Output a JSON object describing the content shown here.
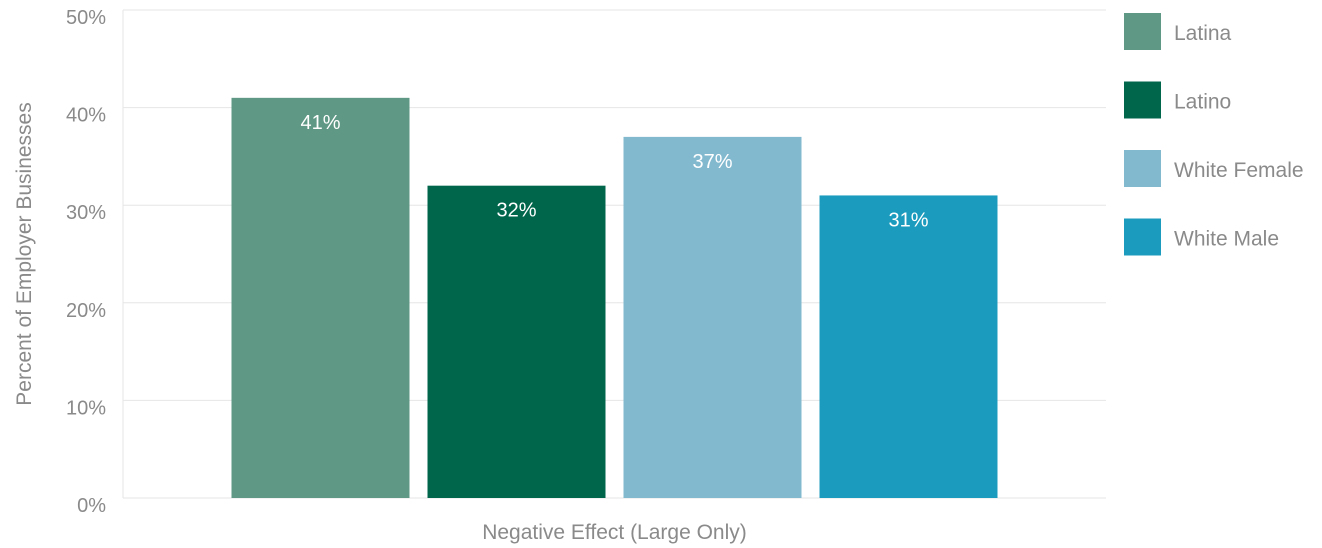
{
  "chart_data": {
    "type": "bar",
    "title": "",
    "xlabel": "Negative Effect (Large Only)",
    "ylabel": "Percent of Employer Businesses",
    "categories": [
      "Negative Effect (Large Only)"
    ],
    "series": [
      {
        "name": "Latina",
        "values": [
          41
        ],
        "color": "#5f9884",
        "label": "41%"
      },
      {
        "name": "Latino",
        "values": [
          32
        ],
        "color": "#00664b",
        "label": "32%"
      },
      {
        "name": "White Female",
        "values": [
          37
        ],
        "color": "#82b9cf",
        "label": "37%"
      },
      {
        "name": "White Male",
        "values": [
          31
        ],
        "color": "#1b9bbd",
        "label": "31%"
      }
    ],
    "ylim": [
      0,
      50
    ],
    "yticks": [
      "0%",
      "10%",
      "20%",
      "30%",
      "40%",
      "50%"
    ],
    "grid": true,
    "legend_position": "right"
  }
}
